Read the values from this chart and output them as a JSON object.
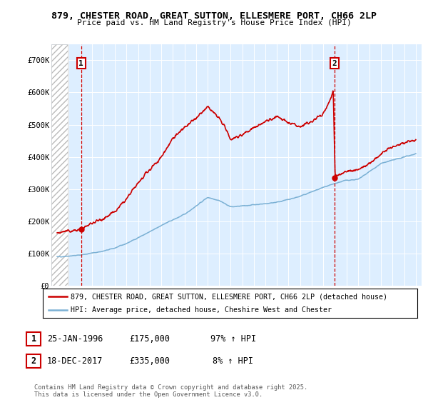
{
  "title": "879, CHESTER ROAD, GREAT SUTTON, ELLESMERE PORT, CH66 2LP",
  "subtitle": "Price paid vs. HM Land Registry's House Price Index (HPI)",
  "legend_line1": "879, CHESTER ROAD, GREAT SUTTON, ELLESMERE PORT, CH66 2LP (detached house)",
  "legend_line2": "HPI: Average price, detached house, Cheshire West and Chester",
  "transaction1": {
    "label": "1",
    "date": "25-JAN-1996",
    "price": "£175,000",
    "hpi": "97% ↑ HPI",
    "year": 1996.07,
    "price_val": 175000
  },
  "transaction2": {
    "label": "2",
    "date": "18-DEC-2017",
    "price": "£335,000",
    "hpi": "8% ↑ HPI",
    "year": 2017.96,
    "price_val": 335000
  },
  "copyright": "Contains HM Land Registry data © Crown copyright and database right 2025.\nThis data is licensed under the Open Government Licence v3.0.",
  "red_color": "#cc0000",
  "blue_color": "#7ab0d4",
  "bg_plot_color": "#ddeeff",
  "ylim": [
    0,
    750000
  ],
  "xlim": [
    1993.5,
    2025.5
  ],
  "yticks": [
    0,
    100000,
    200000,
    300000,
    400000,
    500000,
    600000,
    700000
  ],
  "ytick_labels": [
    "£0",
    "£100K",
    "£200K",
    "£300K",
    "£400K",
    "£500K",
    "£600K",
    "£700K"
  ]
}
